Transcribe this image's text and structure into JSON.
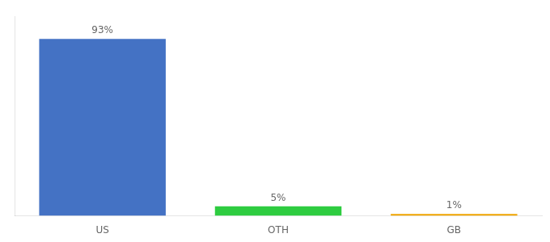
{
  "chart_data": {
    "type": "bar",
    "categories": [
      "US",
      "OTH",
      "GB"
    ],
    "values": [
      93,
      5,
      1
    ],
    "value_labels": [
      "93%",
      "5%",
      "1%"
    ],
    "colors": [
      "#4472c4",
      "#2ecc40",
      "#f0a500"
    ],
    "ylim": [
      0,
      105
    ],
    "grid": false,
    "data_labels": true,
    "tick_labels": "x"
  }
}
